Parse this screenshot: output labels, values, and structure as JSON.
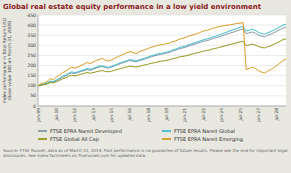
{
  "chart_data": {
    "type": "line",
    "title": "Global real estate equity performance in a low yield environment",
    "y_label": "Index performance in Total Return USD\n(Base value 100 on March 31, 2009)",
    "source": "Source: FTSE Russell, data as of March 31, 2019. Past performance is no guarantee of future results. Please see the end for important legal\ndisclosures. See index factsheets on ftserussell.com for updated data.",
    "categories": [
      "Jan-09",
      null,
      null,
      null,
      null,
      null,
      "Jul-10",
      null,
      null,
      null,
      null,
      null,
      "Jan-12",
      null,
      null,
      null,
      null,
      null,
      "Jul-13",
      null,
      null,
      null,
      null,
      null,
      "Jan-15",
      null,
      null,
      null,
      null,
      null,
      "Jul-16",
      null,
      null,
      null,
      null,
      null,
      "Jan-18",
      null,
      null,
      null,
      null,
      null,
      "Jul-19",
      null,
      null,
      null,
      null,
      null,
      "Jan-21",
      null,
      null,
      null,
      null,
      null,
      "Jul-22",
      null,
      null,
      null,
      null,
      null,
      "Jan-24",
      null,
      null,
      null,
      null,
      null,
      "Jul-25",
      null,
      null,
      null,
      null,
      null,
      "Jan-27",
      null,
      null,
      null,
      null,
      null,
      "Jul-28",
      null,
      null,
      null
    ],
    "series": [
      {
        "name": "FTSE EPRA Nareit Developed",
        "color": "#7a8b9a",
        "values": [
          100,
          104,
          107,
          112,
          120,
          118,
          125,
          132,
          142,
          148,
          157,
          163,
          160,
          165,
          170,
          175,
          180,
          176,
          182,
          187,
          193,
          195,
          190,
          187,
          193,
          198,
          204,
          210,
          215,
          220,
          225,
          222,
          218,
          224,
          228,
          233,
          238,
          243,
          248,
          252,
          255,
          258,
          262,
          265,
          272,
          276,
          282,
          286,
          290,
          295,
          300,
          305,
          310,
          315,
          320,
          323,
          327,
          333,
          337,
          342,
          347,
          352,
          357,
          362,
          366,
          372,
          377,
          380,
          358,
          362,
          366,
          360,
          350,
          345,
          342,
          350,
          355,
          362,
          370,
          378,
          385,
          390
        ]
      },
      {
        "name": "FTSE EPRA Nareit Global",
        "color": "#2ab8c8",
        "values": [
          100,
          105,
          108,
          114,
          123,
          121,
          129,
          137,
          147,
          153,
          162,
          169,
          165,
          169,
          175,
          179,
          186,
          182,
          186,
          192,
          197,
          199,
          194,
          191,
          196,
          202,
          208,
          214,
          219,
          224,
          229,
          227,
          222,
          228,
          232,
          237,
          243,
          248,
          253,
          257,
          260,
          263,
          267,
          270,
          278,
          282,
          288,
          292,
          296,
          301,
          307,
          312,
          317,
          322,
          327,
          331,
          335,
          341,
          345,
          351,
          356,
          362,
          367,
          373,
          378,
          384,
          389,
          393,
          370,
          375,
          380,
          374,
          364,
          358,
          355,
          362,
          368,
          375,
          383,
          392,
          400,
          405
        ]
      },
      {
        "name": "FTSE Global All Cap",
        "color": "#8b8b00",
        "values": [
          100,
          103,
          106,
          109,
          116,
          114,
          120,
          126,
          134,
          139,
          147,
          152,
          149,
          152,
          157,
          161,
          165,
          162,
          165,
          169,
          173,
          175,
          171,
          169,
          172,
          177,
          181,
          185,
          189,
          193,
          197,
          195,
          192,
          196,
          200,
          204,
          207,
          211,
          214,
          217,
          221,
          223,
          226,
          229,
          234,
          237,
          242,
          245,
          247,
          251,
          255,
          259,
          263,
          267,
          271,
          274,
          277,
          282,
          285,
          289,
          293,
          297,
          301,
          305,
          309,
          313,
          317,
          320,
          298,
          302,
          306,
          301,
          294,
          290,
          287,
          293,
          298,
          305,
          312,
          320,
          328,
          332
        ]
      },
      {
        "name": "FTSE EPRA Nareit Emerging",
        "color": "#d4900a",
        "values": [
          100,
          110,
          115,
          122,
          135,
          130,
          143,
          153,
          165,
          172,
          183,
          192,
          187,
          193,
          200,
          207,
          215,
          210,
          217,
          225,
          230,
          235,
          227,
          222,
          228,
          236,
          243,
          250,
          256,
          263,
          269,
          265,
          259,
          268,
          274,
          278,
          285,
          290,
          295,
          299,
          302,
          305,
          308,
          311,
          318,
          322,
          330,
          334,
          338,
          344,
          350,
          354,
          358,
          364,
          370,
          374,
          378,
          384,
          388,
          392,
          395,
          398,
          400,
          402,
          405,
          408,
          410,
          412,
          180,
          185,
          192,
          186,
          175,
          168,
          162,
          172,
          180,
          190,
          200,
          212,
          225,
          232
        ]
      }
    ],
    "ylim": [
      0,
      450
    ],
    "yticks": [
      0,
      50,
      100,
      150,
      200,
      250,
      300,
      350,
      400,
      450
    ],
    "grid": true,
    "legend": "bottom"
  }
}
